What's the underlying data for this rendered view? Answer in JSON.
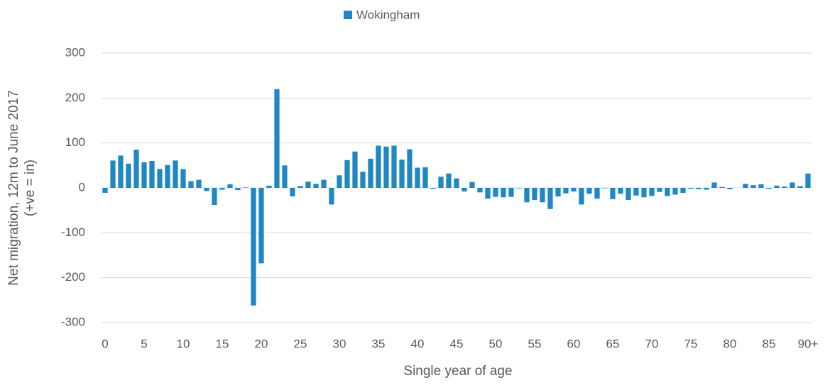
{
  "chart_data": {
    "type": "bar",
    "legend": "Wokingham",
    "xlabel": "Single year of age",
    "ylabel": [
      "Net migration, 12m to June 2017",
      "(+ve = in)"
    ],
    "color": "#1f87c2",
    "categories": [
      "0",
      null,
      null,
      null,
      null,
      "5",
      null,
      null,
      null,
      null,
      "10",
      null,
      null,
      null,
      null,
      "15",
      null,
      null,
      null,
      null,
      "20",
      null,
      null,
      null,
      null,
      "25",
      null,
      null,
      null,
      null,
      "30",
      null,
      null,
      null,
      null,
      "35",
      null,
      null,
      null,
      null,
      "40",
      null,
      null,
      null,
      null,
      "45",
      null,
      null,
      null,
      null,
      "50",
      null,
      null,
      null,
      null,
      "55",
      null,
      null,
      null,
      null,
      "60",
      null,
      null,
      null,
      null,
      "65",
      null,
      null,
      null,
      null,
      "70",
      null,
      null,
      null,
      null,
      "75",
      null,
      null,
      null,
      null,
      "80",
      null,
      null,
      null,
      null,
      "85",
      null,
      null,
      null,
      null,
      "90+"
    ],
    "values": [
      -11,
      61,
      72,
      54,
      85,
      57,
      60,
      42,
      51,
      61,
      42,
      15,
      18,
      -7,
      -38,
      -4,
      8,
      -5,
      1,
      -262,
      -168,
      5,
      220,
      50,
      -19,
      4,
      14,
      9,
      18,
      -37,
      28,
      62,
      81,
      36,
      65,
      94,
      92,
      94,
      63,
      86,
      45,
      46,
      -2,
      25,
      32,
      21,
      -8,
      13,
      -10,
      -24,
      -20,
      -21,
      -20,
      -1,
      -32,
      -27,
      -32,
      -47,
      -19,
      -12,
      -8,
      -37,
      -13,
      -24,
      -1,
      -25,
      -13,
      -27,
      -17,
      -21,
      -18,
      -9,
      -18,
      -15,
      -11,
      -2,
      -3,
      -4,
      12,
      2,
      -3,
      0,
      9,
      6,
      8,
      -2,
      5,
      3,
      12,
      4,
      32
    ],
    "ylim": [
      -300,
      300
    ],
    "yticks": [
      -300,
      -200,
      -100,
      0,
      100,
      200,
      300
    ],
    "grid": true
  }
}
